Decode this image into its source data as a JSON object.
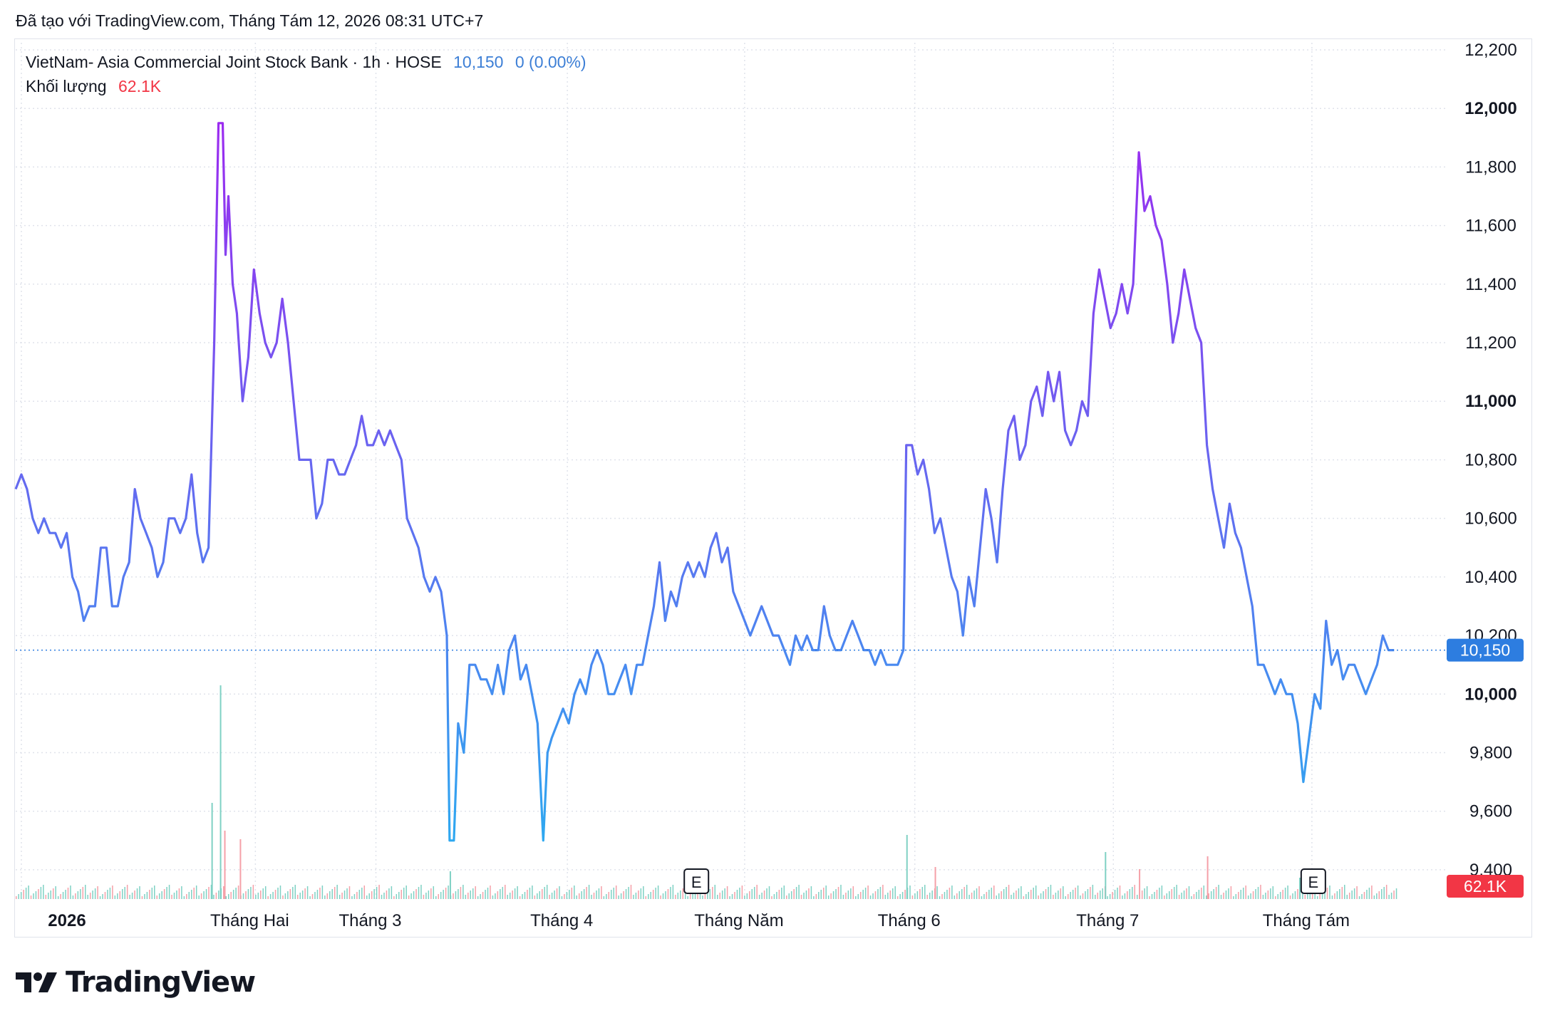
{
  "caption": "Đã tạo với TradingView.com, Tháng Tám 12, 2026 08:31 UTC+7",
  "legend": {
    "symbol": "VietNam- Asia Commercial Joint Stock Bank · 1h · HOSE",
    "price": "10,150",
    "change": "0 (0.00%)",
    "volume_label": "Khối lượng",
    "volume_value": "62.1K"
  },
  "brand": {
    "name": "TradingView",
    "icon": "tradingview-logo-icon"
  },
  "colors": {
    "line_start": "#2ea8f0",
    "line_end": "#9b2bf0",
    "price_badge": "#2d7de0",
    "volume_badge": "#f23645",
    "grid": "#e0e3eb",
    "volume_up": "#7fd1c4",
    "volume_down": "#f5a0a8"
  },
  "chart_data": {
    "type": "line",
    "y_axis": {
      "min": 9300,
      "max": 12200,
      "ticks": [
        9400,
        9600,
        9800,
        10000,
        10200,
        10400,
        10600,
        10800,
        11000,
        11200,
        11400,
        11600,
        11800,
        12000,
        12200
      ],
      "tick_labels": [
        "9,400",
        "9,600",
        "9,800",
        "10,000",
        "10,200",
        "10,400",
        "10,600",
        "10,800",
        "11,000",
        "11,200",
        "11,400",
        "11,600",
        "11,800",
        "12,000",
        "12,200"
      ],
      "bold_ticks": [
        10000,
        11000,
        12000
      ]
    },
    "x_axis": {
      "labels": [
        "2026",
        "Tháng Hai",
        "Tháng 3",
        "Tháng 4",
        "Tháng Năm",
        "Tháng 6",
        "Tháng 7",
        "Tháng Tám"
      ],
      "label_x": [
        0.0,
        0.165,
        0.25,
        0.385,
        0.51,
        0.63,
        0.77,
        0.91
      ],
      "bold": [
        "2026"
      ]
    },
    "last_price": 10150,
    "last_price_label": "10,150",
    "volume_badge_label": "62.1K",
    "earnings_markers": [
      {
        "label": "E",
        "t": 0.48
      },
      {
        "label": "E",
        "t": 0.915
      }
    ],
    "series": [
      {
        "points": [
          [
            0.0,
            10700
          ],
          [
            0.004,
            10750
          ],
          [
            0.008,
            10700
          ],
          [
            0.012,
            10600
          ],
          [
            0.016,
            10550
          ],
          [
            0.02,
            10600
          ],
          [
            0.024,
            10550
          ],
          [
            0.028,
            10550
          ],
          [
            0.032,
            10500
          ],
          [
            0.036,
            10550
          ],
          [
            0.04,
            10400
          ],
          [
            0.044,
            10350
          ],
          [
            0.048,
            10250
          ],
          [
            0.052,
            10300
          ],
          [
            0.056,
            10300
          ],
          [
            0.06,
            10500
          ],
          [
            0.064,
            10500
          ],
          [
            0.068,
            10300
          ],
          [
            0.072,
            10300
          ],
          [
            0.076,
            10400
          ],
          [
            0.08,
            10450
          ],
          [
            0.084,
            10700
          ],
          [
            0.088,
            10600
          ],
          [
            0.092,
            10550
          ],
          [
            0.096,
            10500
          ],
          [
            0.1,
            10400
          ],
          [
            0.104,
            10450
          ],
          [
            0.108,
            10600
          ],
          [
            0.112,
            10600
          ],
          [
            0.116,
            10550
          ],
          [
            0.12,
            10600
          ],
          [
            0.124,
            10750
          ],
          [
            0.128,
            10550
          ],
          [
            0.132,
            10450
          ],
          [
            0.136,
            10500
          ],
          [
            0.14,
            11200
          ],
          [
            0.143,
            11950
          ],
          [
            0.146,
            11950
          ],
          [
            0.148,
            11500
          ],
          [
            0.15,
            11700
          ],
          [
            0.153,
            11400
          ],
          [
            0.156,
            11300
          ],
          [
            0.16,
            11000
          ],
          [
            0.164,
            11150
          ],
          [
            0.168,
            11450
          ],
          [
            0.172,
            11300
          ],
          [
            0.176,
            11200
          ],
          [
            0.18,
            11150
          ],
          [
            0.184,
            11200
          ],
          [
            0.188,
            11350
          ],
          [
            0.192,
            11200
          ],
          [
            0.196,
            11000
          ],
          [
            0.2,
            10800
          ],
          [
            0.204,
            10800
          ],
          [
            0.208,
            10800
          ],
          [
            0.212,
            10600
          ],
          [
            0.216,
            10650
          ],
          [
            0.22,
            10800
          ],
          [
            0.224,
            10800
          ],
          [
            0.228,
            10750
          ],
          [
            0.232,
            10750
          ],
          [
            0.236,
            10800
          ],
          [
            0.24,
            10850
          ],
          [
            0.244,
            10950
          ],
          [
            0.248,
            10850
          ],
          [
            0.252,
            10850
          ],
          [
            0.256,
            10900
          ],
          [
            0.26,
            10850
          ],
          [
            0.264,
            10900
          ],
          [
            0.268,
            10850
          ],
          [
            0.272,
            10800
          ],
          [
            0.276,
            10600
          ],
          [
            0.28,
            10550
          ],
          [
            0.284,
            10500
          ],
          [
            0.288,
            10400
          ],
          [
            0.292,
            10350
          ],
          [
            0.296,
            10400
          ],
          [
            0.3,
            10350
          ],
          [
            0.304,
            10200
          ],
          [
            0.306,
            9500
          ],
          [
            0.309,
            9500
          ],
          [
            0.312,
            9900
          ],
          [
            0.316,
            9800
          ],
          [
            0.32,
            10100
          ],
          [
            0.324,
            10100
          ],
          [
            0.328,
            10050
          ],
          [
            0.332,
            10050
          ],
          [
            0.336,
            10000
          ],
          [
            0.34,
            10100
          ],
          [
            0.344,
            10000
          ],
          [
            0.348,
            10150
          ],
          [
            0.352,
            10200
          ],
          [
            0.356,
            10050
          ],
          [
            0.36,
            10100
          ],
          [
            0.364,
            10000
          ],
          [
            0.368,
            9900
          ],
          [
            0.372,
            9500
          ],
          [
            0.375,
            9800
          ],
          [
            0.378,
            9850
          ],
          [
            0.382,
            9900
          ],
          [
            0.386,
            9950
          ],
          [
            0.39,
            9900
          ],
          [
            0.394,
            10000
          ],
          [
            0.398,
            10050
          ],
          [
            0.402,
            10000
          ],
          [
            0.406,
            10100
          ],
          [
            0.41,
            10150
          ],
          [
            0.414,
            10100
          ],
          [
            0.418,
            10000
          ],
          [
            0.422,
            10000
          ],
          [
            0.426,
            10050
          ],
          [
            0.43,
            10100
          ],
          [
            0.434,
            10000
          ],
          [
            0.438,
            10100
          ],
          [
            0.442,
            10100
          ],
          [
            0.446,
            10200
          ],
          [
            0.45,
            10300
          ],
          [
            0.454,
            10450
          ],
          [
            0.458,
            10250
          ],
          [
            0.462,
            10350
          ],
          [
            0.466,
            10300
          ],
          [
            0.47,
            10400
          ],
          [
            0.474,
            10450
          ],
          [
            0.478,
            10400
          ],
          [
            0.482,
            10450
          ],
          [
            0.486,
            10400
          ],
          [
            0.49,
            10500
          ],
          [
            0.494,
            10550
          ],
          [
            0.498,
            10450
          ],
          [
            0.502,
            10500
          ],
          [
            0.506,
            10350
          ],
          [
            0.51,
            10300
          ],
          [
            0.514,
            10250
          ],
          [
            0.518,
            10200
          ],
          [
            0.522,
            10250
          ],
          [
            0.526,
            10300
          ],
          [
            0.53,
            10250
          ],
          [
            0.534,
            10200
          ],
          [
            0.538,
            10200
          ],
          [
            0.542,
            10150
          ],
          [
            0.546,
            10100
          ],
          [
            0.55,
            10200
          ],
          [
            0.554,
            10150
          ],
          [
            0.558,
            10200
          ],
          [
            0.562,
            10150
          ],
          [
            0.566,
            10150
          ],
          [
            0.57,
            10300
          ],
          [
            0.574,
            10200
          ],
          [
            0.578,
            10150
          ],
          [
            0.582,
            10150
          ],
          [
            0.586,
            10200
          ],
          [
            0.59,
            10250
          ],
          [
            0.594,
            10200
          ],
          [
            0.598,
            10150
          ],
          [
            0.602,
            10150
          ],
          [
            0.606,
            10100
          ],
          [
            0.61,
            10150
          ],
          [
            0.614,
            10100
          ],
          [
            0.618,
            10100
          ],
          [
            0.622,
            10100
          ],
          [
            0.626,
            10150
          ],
          [
            0.628,
            10850
          ],
          [
            0.632,
            10850
          ],
          [
            0.636,
            10750
          ],
          [
            0.64,
            10800
          ],
          [
            0.644,
            10700
          ],
          [
            0.648,
            10550
          ],
          [
            0.652,
            10600
          ],
          [
            0.656,
            10500
          ],
          [
            0.66,
            10400
          ],
          [
            0.664,
            10350
          ],
          [
            0.668,
            10200
          ],
          [
            0.672,
            10400
          ],
          [
            0.676,
            10300
          ],
          [
            0.68,
            10500
          ],
          [
            0.684,
            10700
          ],
          [
            0.688,
            10600
          ],
          [
            0.692,
            10450
          ],
          [
            0.696,
            10700
          ],
          [
            0.7,
            10900
          ],
          [
            0.704,
            10950
          ],
          [
            0.708,
            10800
          ],
          [
            0.712,
            10850
          ],
          [
            0.716,
            11000
          ],
          [
            0.72,
            11050
          ],
          [
            0.724,
            10950
          ],
          [
            0.728,
            11100
          ],
          [
            0.732,
            11000
          ],
          [
            0.736,
            11100
          ],
          [
            0.74,
            10900
          ],
          [
            0.744,
            10850
          ],
          [
            0.748,
            10900
          ],
          [
            0.752,
            11000
          ],
          [
            0.756,
            10950
          ],
          [
            0.76,
            11300
          ],
          [
            0.764,
            11450
          ],
          [
            0.768,
            11350
          ],
          [
            0.772,
            11250
          ],
          [
            0.776,
            11300
          ],
          [
            0.78,
            11400
          ],
          [
            0.784,
            11300
          ],
          [
            0.788,
            11400
          ],
          [
            0.792,
            11850
          ],
          [
            0.796,
            11650
          ],
          [
            0.8,
            11700
          ],
          [
            0.804,
            11600
          ],
          [
            0.808,
            11550
          ],
          [
            0.812,
            11400
          ],
          [
            0.816,
            11200
          ],
          [
            0.82,
            11300
          ],
          [
            0.824,
            11450
          ],
          [
            0.828,
            11350
          ],
          [
            0.832,
            11250
          ],
          [
            0.836,
            11200
          ],
          [
            0.84,
            10850
          ],
          [
            0.844,
            10700
          ],
          [
            0.848,
            10600
          ],
          [
            0.852,
            10500
          ],
          [
            0.856,
            10650
          ],
          [
            0.86,
            10550
          ],
          [
            0.864,
            10500
          ],
          [
            0.868,
            10400
          ],
          [
            0.872,
            10300
          ],
          [
            0.876,
            10100
          ],
          [
            0.88,
            10100
          ],
          [
            0.884,
            10050
          ],
          [
            0.888,
            10000
          ],
          [
            0.892,
            10050
          ],
          [
            0.896,
            10000
          ],
          [
            0.9,
            10000
          ],
          [
            0.904,
            9900
          ],
          [
            0.908,
            9700
          ],
          [
            0.912,
            9850
          ],
          [
            0.916,
            10000
          ],
          [
            0.92,
            9950
          ],
          [
            0.924,
            10250
          ],
          [
            0.928,
            10100
          ],
          [
            0.932,
            10150
          ],
          [
            0.936,
            10050
          ],
          [
            0.94,
            10100
          ],
          [
            0.944,
            10100
          ],
          [
            0.948,
            10050
          ],
          [
            0.952,
            10000
          ],
          [
            0.956,
            10050
          ],
          [
            0.96,
            10100
          ],
          [
            0.964,
            10200
          ],
          [
            0.968,
            10150
          ],
          [
            0.972,
            10150
          ]
        ]
      }
    ],
    "volume": {
      "label": "Khối lượng",
      "spikes": [
        {
          "t": 0.144,
          "v": 1.0,
          "up": true
        },
        {
          "t": 0.138,
          "v": 0.45,
          "up": true
        },
        {
          "t": 0.147,
          "v": 0.32,
          "up": false
        },
        {
          "t": 0.158,
          "v": 0.28,
          "up": false
        },
        {
          "t": 0.306,
          "v": 0.13,
          "up": true
        },
        {
          "t": 0.628,
          "v": 0.3,
          "up": true
        },
        {
          "t": 0.648,
          "v": 0.15,
          "up": false
        },
        {
          "t": 0.768,
          "v": 0.22,
          "up": true
        },
        {
          "t": 0.792,
          "v": 0.14,
          "up": false
        },
        {
          "t": 0.84,
          "v": 0.2,
          "up": false
        },
        {
          "t": 0.905,
          "v": 0.1,
          "up": true
        }
      ]
    }
  }
}
